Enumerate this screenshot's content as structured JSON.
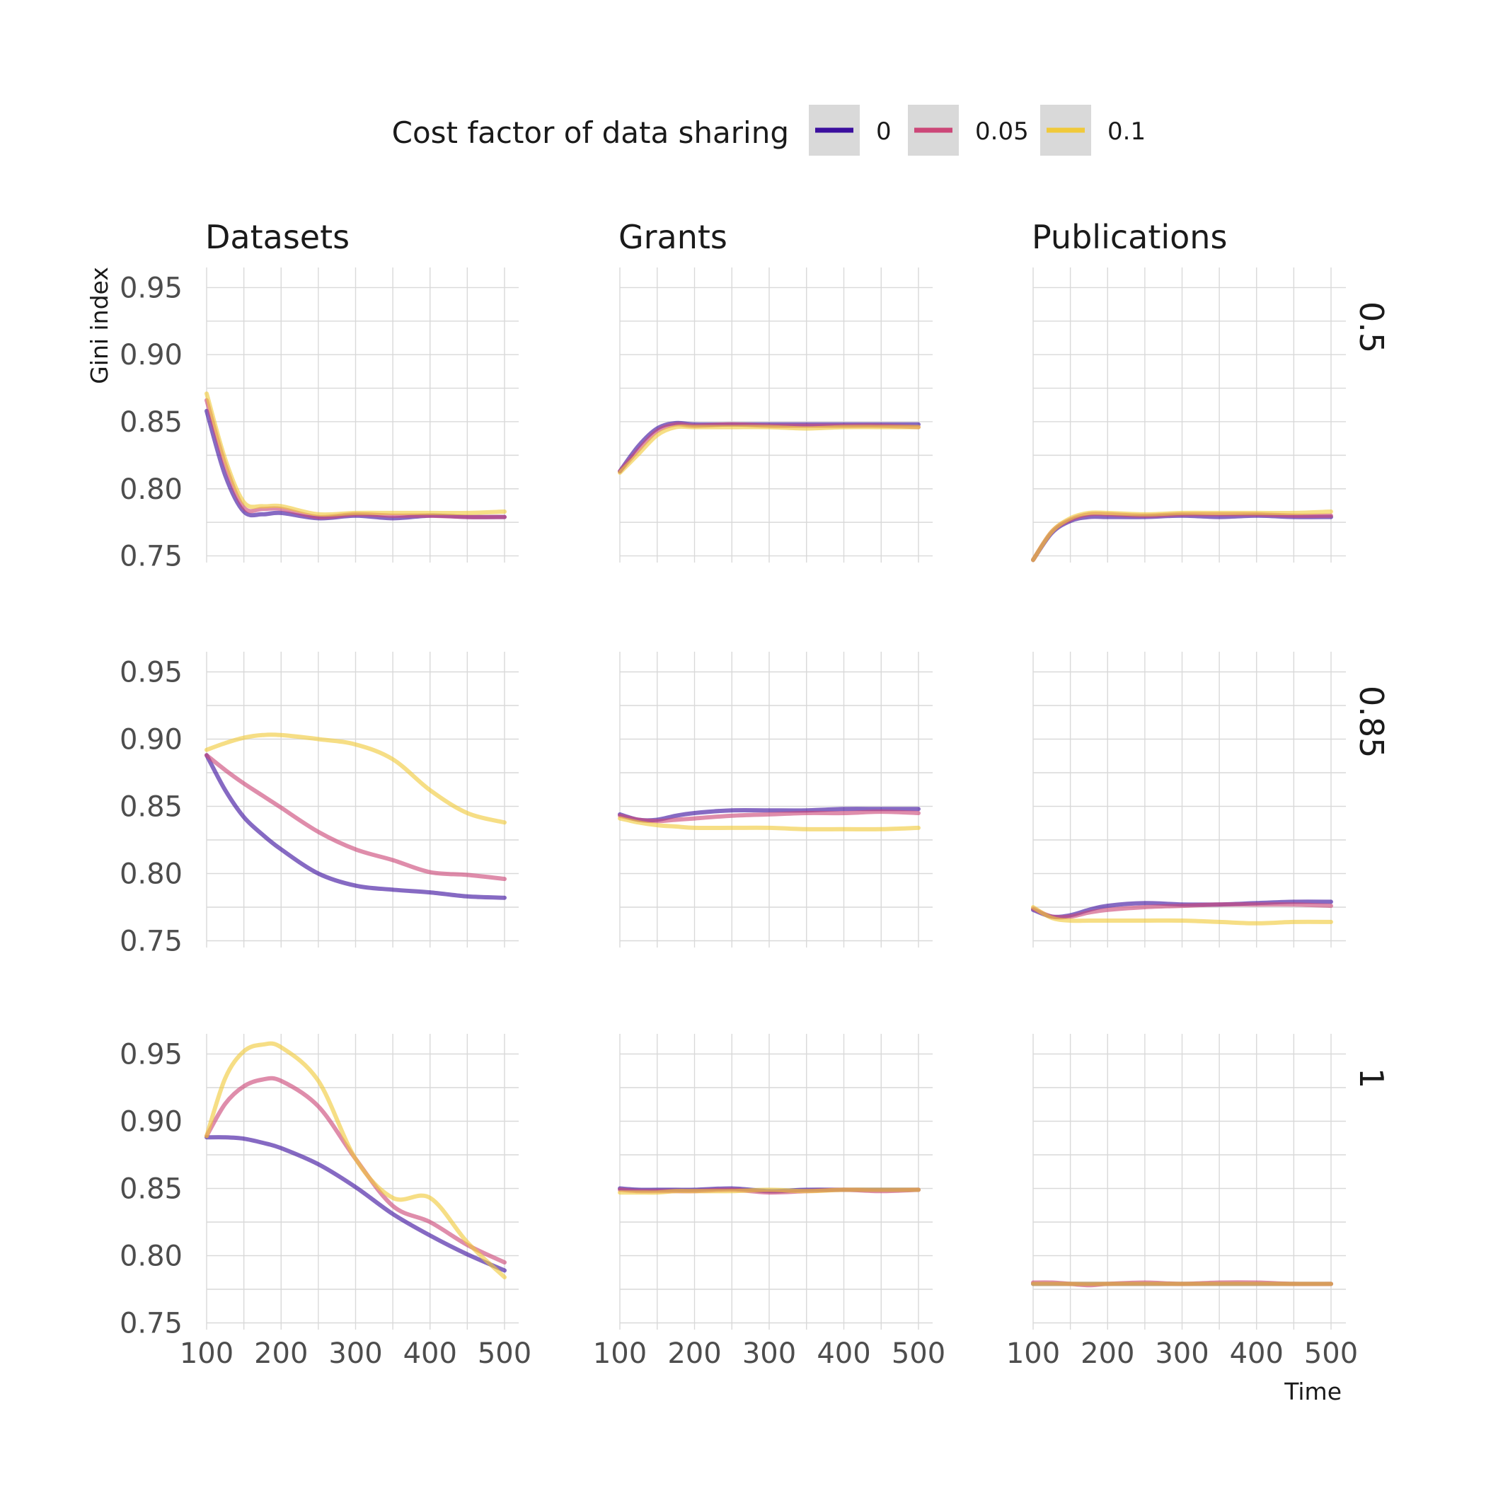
{
  "legend": {
    "title": "Cost factor of data sharing",
    "entries": [
      {
        "label": "0",
        "color": "#3b0f9e"
      },
      {
        "label": "0.05",
        "color": "#cc4778"
      },
      {
        "label": "0.1",
        "color": "#f0c93a"
      }
    ]
  },
  "axes": {
    "ylabel": "Gini index",
    "xlabel": "Time",
    "xticks": [
      "100",
      "200",
      "300",
      "400",
      "500"
    ],
    "yticks": [
      "0.75",
      "0.80",
      "0.85",
      "0.90",
      "0.95"
    ]
  },
  "chart_data": {
    "type": "line",
    "facet_columns": [
      "Datasets",
      "Grants",
      "Publications"
    ],
    "facet_rows": [
      "0.5",
      "0.85",
      "1"
    ],
    "xlim": [
      100,
      500
    ],
    "ylim": [
      0.745,
      0.965
    ],
    "grid": true,
    "legend_position": "top",
    "x": [
      100,
      125,
      150,
      175,
      200,
      250,
      300,
      350,
      400,
      450,
      500
    ],
    "panels": [
      {
        "row": "0.5",
        "col": "Datasets",
        "series": [
          {
            "name": "0",
            "values": [
              0.858,
              0.81,
              0.783,
              0.781,
              0.782,
              0.778,
              0.78,
              0.778,
              0.78,
              0.779,
              0.779
            ]
          },
          {
            "name": "0.05",
            "values": [
              0.866,
              0.818,
              0.786,
              0.785,
              0.785,
              0.779,
              0.781,
              0.78,
              0.78,
              0.779,
              0.779
            ]
          },
          {
            "name": "0.1",
            "values": [
              0.871,
              0.822,
              0.79,
              0.787,
              0.787,
              0.781,
              0.782,
              0.782,
              0.782,
              0.782,
              0.783
            ]
          }
        ]
      },
      {
        "row": "0.5",
        "col": "Grants",
        "series": [
          {
            "name": "0",
            "values": [
              0.813,
              0.832,
              0.845,
              0.849,
              0.848,
              0.848,
              0.848,
              0.848,
              0.848,
              0.848,
              0.848
            ]
          },
          {
            "name": "0.05",
            "values": [
              0.813,
              0.829,
              0.843,
              0.848,
              0.847,
              0.848,
              0.847,
              0.847,
              0.847,
              0.847,
              0.846
            ]
          },
          {
            "name": "0.1",
            "values": [
              0.812,
              0.826,
              0.84,
              0.846,
              0.846,
              0.846,
              0.846,
              0.845,
              0.846,
              0.846,
              0.846
            ]
          }
        ]
      },
      {
        "row": "0.5",
        "col": "Publications",
        "series": [
          {
            "name": "0",
            "values": [
              0.747,
              0.767,
              0.776,
              0.779,
              0.779,
              0.779,
              0.78,
              0.779,
              0.78,
              0.779,
              0.779
            ]
          },
          {
            "name": "0.05",
            "values": [
              0.747,
              0.768,
              0.777,
              0.781,
              0.781,
              0.78,
              0.781,
              0.781,
              0.781,
              0.78,
              0.78
            ]
          },
          {
            "name": "0.1",
            "values": [
              0.747,
              0.768,
              0.778,
              0.782,
              0.782,
              0.781,
              0.782,
              0.782,
              0.782,
              0.782,
              0.783
            ]
          }
        ]
      },
      {
        "row": "0.85",
        "col": "Datasets",
        "series": [
          {
            "name": "0",
            "values": [
              0.888,
              0.862,
              0.842,
              0.829,
              0.818,
              0.8,
              0.791,
              0.788,
              0.786,
              0.783,
              0.782
            ]
          },
          {
            "name": "0.05",
            "values": [
              0.888,
              0.877,
              0.867,
              0.858,
              0.849,
              0.831,
              0.818,
              0.81,
              0.801,
              0.799,
              0.796
            ]
          },
          {
            "name": "0.1",
            "values": [
              0.892,
              0.897,
              0.901,
              0.903,
              0.903,
              0.9,
              0.896,
              0.885,
              0.862,
              0.845,
              0.838
            ]
          }
        ]
      },
      {
        "row": "0.85",
        "col": "Grants",
        "series": [
          {
            "name": "0",
            "values": [
              0.844,
              0.84,
              0.84,
              0.843,
              0.845,
              0.847,
              0.847,
              0.847,
              0.848,
              0.848,
              0.848
            ]
          },
          {
            "name": "0.05",
            "values": [
              0.843,
              0.84,
              0.839,
              0.84,
              0.841,
              0.843,
              0.844,
              0.845,
              0.845,
              0.846,
              0.845
            ]
          },
          {
            "name": "0.1",
            "values": [
              0.841,
              0.838,
              0.836,
              0.835,
              0.834,
              0.834,
              0.834,
              0.833,
              0.833,
              0.833,
              0.834
            ]
          }
        ]
      },
      {
        "row": "0.85",
        "col": "Publications",
        "series": [
          {
            "name": "0",
            "values": [
              0.773,
              0.768,
              0.769,
              0.773,
              0.776,
              0.778,
              0.777,
              0.777,
              0.778,
              0.779,
              0.779
            ]
          },
          {
            "name": "0.05",
            "values": [
              0.774,
              0.768,
              0.768,
              0.771,
              0.773,
              0.775,
              0.776,
              0.777,
              0.777,
              0.777,
              0.776
            ]
          },
          {
            "name": "0.1",
            "values": [
              0.775,
              0.767,
              0.765,
              0.765,
              0.765,
              0.765,
              0.765,
              0.764,
              0.763,
              0.764,
              0.764
            ]
          }
        ]
      },
      {
        "row": "1",
        "col": "Datasets",
        "series": [
          {
            "name": "0",
            "values": [
              0.888,
              0.888,
              0.887,
              0.884,
              0.88,
              0.868,
              0.851,
              0.831,
              0.815,
              0.801,
              0.789
            ]
          },
          {
            "name": "0.05",
            "values": [
              0.889,
              0.913,
              0.926,
              0.931,
              0.93,
              0.911,
              0.872,
              0.837,
              0.825,
              0.808,
              0.795
            ]
          },
          {
            "name": "0.1",
            "values": [
              0.889,
              0.932,
              0.952,
              0.957,
              0.955,
              0.93,
              0.872,
              0.843,
              0.843,
              0.81,
              0.784
            ]
          }
        ]
      },
      {
        "row": "1",
        "col": "Grants",
        "series": [
          {
            "name": "0",
            "values": [
              0.85,
              0.849,
              0.849,
              0.849,
              0.849,
              0.85,
              0.848,
              0.849,
              0.849,
              0.849,
              0.849
            ]
          },
          {
            "name": "0.05",
            "values": [
              0.849,
              0.848,
              0.848,
              0.848,
              0.848,
              0.849,
              0.847,
              0.848,
              0.849,
              0.848,
              0.849
            ]
          },
          {
            "name": "0.1",
            "values": [
              0.847,
              0.847,
              0.847,
              0.848,
              0.848,
              0.848,
              0.849,
              0.848,
              0.849,
              0.849,
              0.849
            ]
          }
        ]
      },
      {
        "row": "1",
        "col": "Publications",
        "series": [
          {
            "name": "0",
            "values": [
              0.779,
              0.779,
              0.779,
              0.779,
              0.779,
              0.779,
              0.779,
              0.779,
              0.779,
              0.779,
              0.779
            ]
          },
          {
            "name": "0.05",
            "values": [
              0.78,
              0.78,
              0.779,
              0.778,
              0.779,
              0.78,
              0.779,
              0.78,
              0.78,
              0.779,
              0.779
            ]
          },
          {
            "name": "0.1",
            "values": [
              0.779,
              0.779,
              0.779,
              0.779,
              0.779,
              0.779,
              0.779,
              0.779,
              0.779,
              0.779,
              0.779
            ]
          }
        ]
      }
    ]
  }
}
